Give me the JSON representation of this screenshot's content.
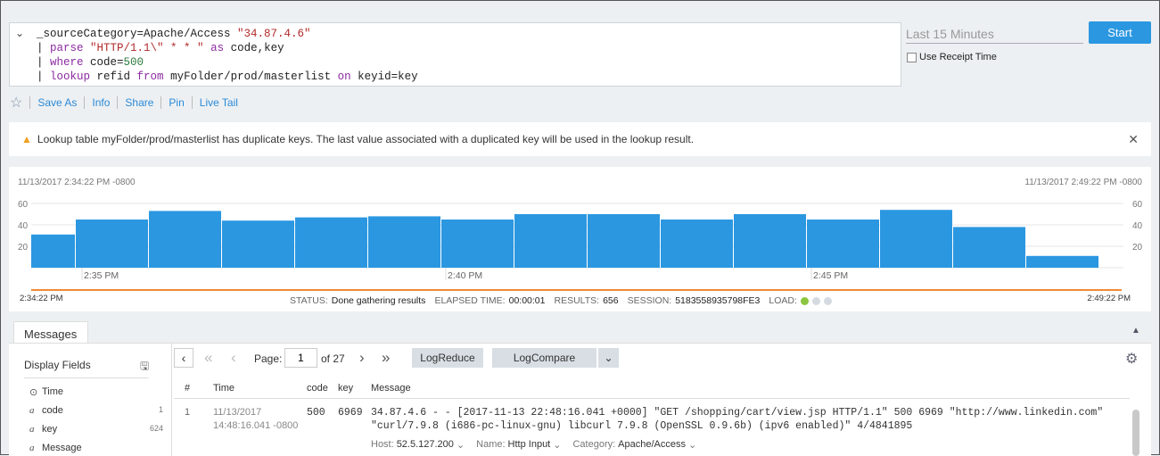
{
  "query": {
    "lines": [
      [
        {
          "t": "_sourceCategory=Apache/Access ",
          "c": ""
        },
        {
          "t": "\"34.87.4.6\"",
          "c": "str"
        }
      ],
      [
        {
          "t": "| ",
          "c": ""
        },
        {
          "t": "parse ",
          "c": "kw"
        },
        {
          "t": "\"HTTP/1.1\\\" * * \" ",
          "c": "str"
        },
        {
          "t": "as ",
          "c": "kw"
        },
        {
          "t": "code,key",
          "c": ""
        }
      ],
      [
        {
          "t": "| ",
          "c": ""
        },
        {
          "t": "where ",
          "c": "kw"
        },
        {
          "t": "code=",
          "c": ""
        },
        {
          "t": "500",
          "c": "num"
        }
      ],
      [
        {
          "t": "| ",
          "c": ""
        },
        {
          "t": "lookup ",
          "c": "kw"
        },
        {
          "t": "refid ",
          "c": ""
        },
        {
          "t": "from ",
          "c": "kw"
        },
        {
          "t": "myFolder/prod/masterlist ",
          "c": ""
        },
        {
          "t": "on ",
          "c": "kw"
        },
        {
          "t": "keyid=key",
          "c": ""
        }
      ]
    ]
  },
  "time_range": "Last 15 Minutes",
  "start_label": "Start",
  "use_receipt": "Use Receipt Time",
  "actions": [
    "Save As",
    "Info",
    "Share",
    "Pin",
    "Live Tail"
  ],
  "alert": "Lookup table myFolder/prod/masterlist has duplicate keys. The last value associated with a duplicated key will be used in the lookup result.",
  "chart_data": {
    "type": "bar",
    "start_label": "11/13/2017 2:34:22 PM -0800",
    "end_label": "11/13/2017 2:49:22 PM -0800",
    "yticks": [
      "60",
      "40",
      "20"
    ],
    "ylim": [
      0,
      60
    ],
    "xticks": [
      "2:35 PM",
      "2:40 PM",
      "2:45 PM"
    ],
    "values": [
      31,
      45,
      53,
      44,
      47,
      48,
      45,
      50,
      50,
      45,
      50,
      45,
      54,
      38,
      11
    ],
    "color": "#2b97e1",
    "grid": true
  },
  "range": {
    "start": "2:34:22 PM",
    "end": "2:49:22 PM"
  },
  "status": {
    "status_label": "STATUS:",
    "status": "Done gathering results",
    "elapsed_label": "ELAPSED TIME:",
    "elapsed": "00:00:01",
    "results_label": "RESULTS:",
    "results": "656",
    "session_label": "SESSION:",
    "session": "5183558935798FE3",
    "load_label": "LOAD:"
  },
  "tab": "Messages",
  "fields": {
    "title": "Display Fields",
    "items": [
      {
        "name": "Time",
        "count": ""
      },
      {
        "name": "code",
        "count": "1"
      },
      {
        "name": "key",
        "count": "624"
      },
      {
        "name": "Message",
        "count": ""
      }
    ]
  },
  "pager": {
    "page_label": "Page:",
    "page": "1",
    "of": "of 27",
    "logreduce": "LogReduce",
    "logcompare": "LogCompare"
  },
  "table": {
    "headers": [
      "#",
      "Time",
      "code",
      "key",
      "Message"
    ],
    "row": {
      "n": "1",
      "date": "11/13/2017",
      "time": "14:48:16.041 -0800",
      "code": "500",
      "key": "6969",
      "msg1": "34.87.4.6 - - [2017-11-13 22:48:16.041 +0000] \"GET /shopping/cart/view.jsp HTTP/1.1\" 500 6969 \"http://www.linkedin.com\"",
      "msg2": "\"curl/7.9.8 (i686-pc-linux-gnu) libcurl 7.9.8 (OpenSSL 0.9.6b) (ipv6 enabled)\" 4/4841895",
      "host_label": "Host:",
      "host": "52.5.127.200",
      "name_label": "Name:",
      "name": "Http Input",
      "cat_label": "Category:",
      "cat": "Apache/Access"
    }
  }
}
